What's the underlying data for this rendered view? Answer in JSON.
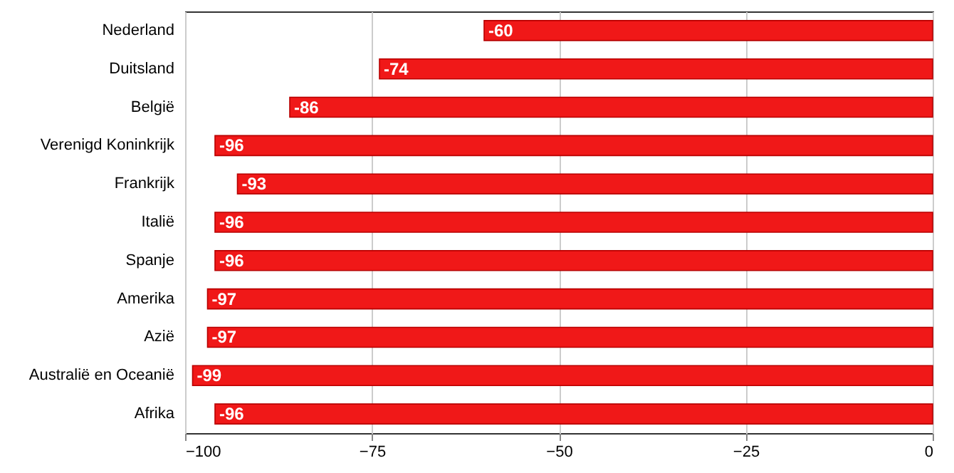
{
  "chart_data": {
    "type": "bar",
    "orientation": "horizontal",
    "categories": [
      "Nederland",
      "Duitsland",
      "België",
      "Verenigd Koninkrijk",
      "Frankrijk",
      "Italië",
      "Spanje",
      "Amerika",
      "Azië",
      "Australië en Oceanië",
      "Afrika"
    ],
    "values": [
      -60,
      -74,
      -86,
      -96,
      -93,
      -96,
      -96,
      -97,
      -97,
      -99,
      -96
    ],
    "color": "#f01818",
    "xlim": [
      -100,
      0
    ],
    "xticks": [
      -100,
      -75,
      -50,
      -25,
      0
    ],
    "grid": "x",
    "data_labels": true
  }
}
